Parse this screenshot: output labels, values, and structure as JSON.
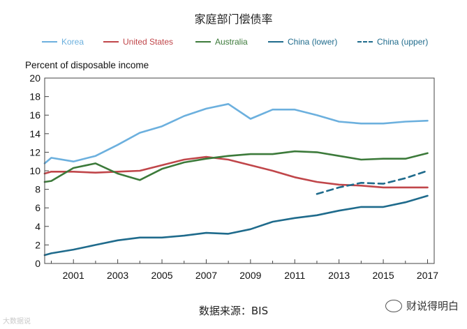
{
  "title": "家庭部门偿债率",
  "source": "数据来源：BIS",
  "watermark_right": "财说得明白",
  "watermark_left": "大数据说",
  "chart_data": {
    "type": "line",
    "ylabel": "Percent of disposable income",
    "ylim": [
      0,
      20
    ],
    "yticks": [
      "0",
      "2",
      "4",
      "6",
      "8",
      "10",
      "12",
      "14",
      "16",
      "18",
      "20"
    ],
    "xlim": [
      1999.7,
      2017.3
    ],
    "xticks": [
      "2001",
      "2003",
      "2005",
      "2007",
      "2009",
      "2011",
      "2013",
      "2015",
      "2017"
    ],
    "grid": false,
    "legend_position": "top",
    "series": [
      {
        "name": "Korea",
        "color": "#6cb0de",
        "dash": false,
        "x": [
          1999.7,
          2000,
          2001,
          2002,
          2003,
          2004,
          2005,
          2006,
          2007,
          2008,
          2009,
          2010,
          2011,
          2012,
          2013,
          2014,
          2015,
          2016,
          2017
        ],
        "values": [
          10.8,
          11.4,
          11.0,
          11.6,
          12.8,
          14.1,
          14.8,
          15.9,
          16.7,
          17.2,
          15.6,
          16.6,
          16.6,
          16.0,
          15.3,
          15.1,
          15.1,
          15.3,
          15.4
        ]
      },
      {
        "name": "United States",
        "color": "#c0464a",
        "dash": false,
        "x": [
          1999.7,
          2000,
          2001,
          2002,
          2003,
          2004,
          2005,
          2006,
          2007,
          2008,
          2009,
          2010,
          2011,
          2012,
          2013,
          2014,
          2015,
          2016,
          2017
        ],
        "values": [
          9.7,
          9.9,
          9.9,
          9.8,
          9.9,
          10.0,
          10.6,
          11.2,
          11.5,
          11.2,
          10.6,
          10.0,
          9.3,
          8.8,
          8.5,
          8.4,
          8.2,
          8.2,
          8.2
        ]
      },
      {
        "name": "Australia",
        "color": "#3c7a3a",
        "dash": false,
        "x": [
          1999.7,
          2000,
          2001,
          2002,
          2003,
          2004,
          2005,
          2006,
          2007,
          2008,
          2009,
          2010,
          2011,
          2012,
          2013,
          2014,
          2015,
          2016,
          2017
        ],
        "values": [
          8.8,
          8.9,
          10.3,
          10.8,
          9.7,
          9.0,
          10.2,
          10.9,
          11.3,
          11.6,
          11.8,
          11.8,
          12.1,
          12.0,
          11.6,
          11.2,
          11.3,
          11.3,
          11.9
        ]
      },
      {
        "name": "China (lower)",
        "color": "#1f6b8c",
        "dash": false,
        "x": [
          1999.7,
          2000,
          2001,
          2002,
          2003,
          2004,
          2005,
          2006,
          2007,
          2008,
          2009,
          2010,
          2011,
          2012,
          2013,
          2014,
          2015,
          2016,
          2017
        ],
        "values": [
          0.9,
          1.1,
          1.5,
          2.0,
          2.5,
          2.8,
          2.8,
          3.0,
          3.3,
          3.2,
          3.7,
          4.5,
          4.9,
          5.2,
          5.7,
          6.1,
          6.1,
          6.6,
          7.3
        ]
      },
      {
        "name": "China (upper)",
        "color": "#1f6b8c",
        "dash": true,
        "x": [
          2012,
          2013,
          2014,
          2015,
          2016,
          2017
        ],
        "values": [
          7.5,
          8.2,
          8.7,
          8.6,
          9.2,
          10.0
        ]
      }
    ]
  }
}
